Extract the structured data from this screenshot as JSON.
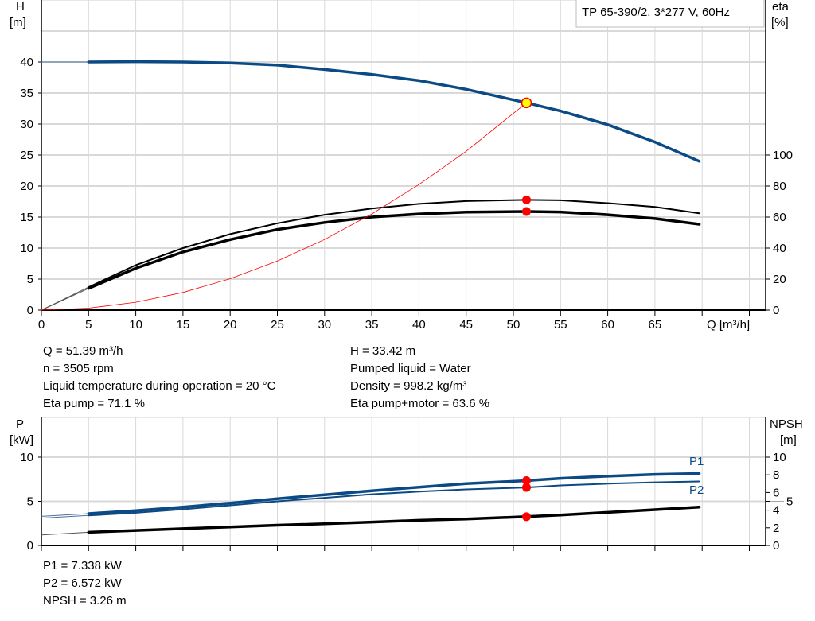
{
  "chart_data": [
    {
      "type": "line",
      "title": "TP 65-390/2, 3*277 V, 60Hz",
      "xlabel": "Q [m³/h]",
      "ylabel_left": [
        "H",
        "[m]"
      ],
      "ylabel_right": [
        "eta",
        "[%]"
      ],
      "xlim": [
        0,
        77
      ],
      "ylim_left": [
        0,
        45
      ],
      "ylim_right": [
        0,
        180
      ],
      "x_ticks": [
        0,
        5,
        10,
        15,
        20,
        25,
        30,
        35,
        40,
        45,
        50,
        55,
        60,
        65,
        70,
        75
      ],
      "x_tick_labels": [
        "0",
        "5",
        "10",
        "15",
        "20",
        "25",
        "30",
        "35",
        "40",
        "45",
        "50",
        "55",
        "60",
        "65"
      ],
      "y_ticks_left": [
        0,
        5,
        10,
        15,
        20,
        25,
        30,
        35,
        40
      ],
      "y_ticks_right": [
        0,
        20,
        40,
        60,
        80,
        100
      ],
      "grid": true,
      "series": [
        {
          "key": "H",
          "axis": "left",
          "color": "#0b4a85",
          "x": [
            0,
            5,
            10,
            15,
            20,
            25,
            30,
            35,
            40,
            45,
            51.39,
            55,
            60,
            65,
            69.7
          ],
          "y": [
            40,
            40,
            40.05,
            40,
            39.85,
            39.5,
            38.8,
            38,
            37,
            35.6,
            33.42,
            32.1,
            29.9,
            27.1,
            24
          ]
        },
        {
          "key": "eta_pump",
          "axis": "right",
          "color": "#000000",
          "x": [
            0,
            5,
            10,
            15,
            20,
            25,
            30,
            35,
            40,
            45,
            51.39,
            55,
            60,
            65,
            69.7
          ],
          "y": [
            0,
            14.8,
            29,
            40,
            49,
            56,
            61.5,
            65.5,
            68.5,
            70.3,
            71.1,
            70.8,
            69,
            66.5,
            62.4
          ]
        },
        {
          "key": "eta_pump_motor",
          "axis": "right",
          "color": "#000000",
          "x": [
            0,
            5,
            10,
            15,
            20,
            25,
            30,
            35,
            40,
            45,
            51.39,
            55,
            60,
            65,
            69.7
          ],
          "y": [
            0,
            14,
            27,
            37.5,
            45.5,
            52,
            56.5,
            60,
            62,
            63.2,
            63.6,
            63.3,
            61.5,
            59,
            55.4
          ]
        },
        {
          "key": "system",
          "axis": "left",
          "color": "#ff0000",
          "x": [
            0,
            5,
            10,
            15,
            20,
            25,
            30,
            35,
            40,
            45,
            51.39
          ],
          "y": [
            0,
            0.32,
            1.27,
            2.85,
            5.06,
            7.91,
            11.39,
            15.5,
            20.25,
            25.6,
            33.42
          ]
        }
      ],
      "operating_point": {
        "Q": 51.39,
        "H": 33.42,
        "eta_pump": 71.1,
        "eta_pump_motor": 63.6
      }
    },
    {
      "type": "line",
      "xlim": [
        0,
        77
      ],
      "ylabel_left": [
        "P",
        "[kW]"
      ],
      "ylabel_right": [
        "NPSH",
        "[m]"
      ],
      "ylim_left": [
        0,
        12.5
      ],
      "ylim_right": [
        0,
        12.5
      ],
      "y_ticks_left": [
        0,
        5,
        10
      ],
      "y_ticks_right": [
        0,
        2,
        4,
        5,
        6,
        8,
        10
      ],
      "grid": true,
      "series": [
        {
          "key": "P1",
          "name": "P1",
          "axis": "left",
          "color": "#0b4a85",
          "x": [
            0,
            5,
            10,
            15,
            20,
            25,
            30,
            35,
            40,
            45,
            51.39,
            55,
            60,
            65,
            69.7
          ],
          "y": [
            3.3,
            3.6,
            3.95,
            4.35,
            4.8,
            5.3,
            5.75,
            6.2,
            6.6,
            7.0,
            7.338,
            7.6,
            7.85,
            8.05,
            8.15
          ]
        },
        {
          "key": "P2",
          "name": "P2",
          "axis": "left",
          "color": "#0b4a85",
          "x": [
            0,
            5,
            10,
            15,
            20,
            25,
            30,
            35,
            40,
            45,
            51.39,
            55,
            60,
            65,
            69.7
          ],
          "y": [
            3.1,
            3.4,
            3.7,
            4.1,
            4.55,
            5.0,
            5.4,
            5.8,
            6.1,
            6.35,
            6.572,
            6.8,
            7.0,
            7.15,
            7.25
          ]
        },
        {
          "key": "NPSH",
          "axis": "right",
          "color": "#000000",
          "x": [
            0,
            5,
            10,
            15,
            20,
            25,
            30,
            35,
            40,
            45,
            51.39,
            55,
            60,
            65,
            69.7
          ],
          "y": [
            1.2,
            1.5,
            1.7,
            1.9,
            2.1,
            2.3,
            2.45,
            2.65,
            2.85,
            3.0,
            3.26,
            3.45,
            3.75,
            4.05,
            4.35
          ]
        }
      ],
      "operating_point": {
        "Q": 51.39,
        "P1": 7.338,
        "P2": 6.572,
        "NPSH": 3.26
      }
    }
  ],
  "info": {
    "left": [
      "Q = 51.39 m³/h",
      "n = 3505 rpm",
      "Liquid temperature during operation = 20 °C",
      "Eta pump = 71.1 %"
    ],
    "right": [
      "H = 33.42 m",
      "Pumped liquid = Water",
      "Density = 998.2 kg/m³",
      "Eta pump+motor = 63.6 %"
    ],
    "bottom": [
      "P1 = 7.338 kW",
      "P2 = 6.572 kW",
      "NPSH = 3.26 m"
    ]
  }
}
